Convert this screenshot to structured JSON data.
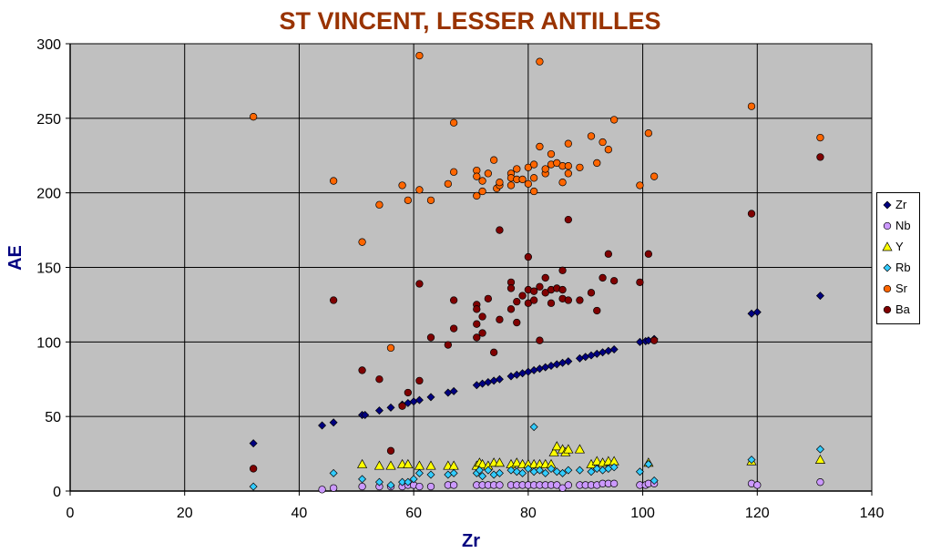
{
  "chart_data": {
    "type": "scatter",
    "title": "ST VINCENT, LESSER ANTILLES",
    "xlabel": "Zr",
    "ylabel": "AE",
    "xlim": [
      0,
      140
    ],
    "ylim": [
      0,
      300
    ],
    "xticks": [
      "0",
      "20",
      "40",
      "60",
      "80",
      "100",
      "120",
      "140"
    ],
    "yticks": [
      "0",
      "50",
      "100",
      "150",
      "200",
      "250",
      "300"
    ],
    "grid": true,
    "plot_background": "#c0c0c0",
    "legend_position": "right",
    "series": [
      {
        "name": "Zr",
        "marker": "diamond",
        "color": "#000080",
        "points": [
          [
            32,
            32
          ],
          [
            44,
            44
          ],
          [
            46,
            46
          ],
          [
            51,
            51
          ],
          [
            51.5,
            51
          ],
          [
            54,
            54
          ],
          [
            56,
            56
          ],
          [
            58,
            58
          ],
          [
            59,
            59
          ],
          [
            60,
            60
          ],
          [
            61,
            61
          ],
          [
            63,
            63
          ],
          [
            66,
            66
          ],
          [
            67,
            67
          ],
          [
            71,
            71
          ],
          [
            72,
            72
          ],
          [
            73,
            73
          ],
          [
            74,
            74
          ],
          [
            75,
            75
          ],
          [
            77,
            77
          ],
          [
            78,
            78
          ],
          [
            79,
            79
          ],
          [
            80,
            80
          ],
          [
            81,
            81
          ],
          [
            82,
            82
          ],
          [
            83,
            83
          ],
          [
            84,
            84
          ],
          [
            85,
            85
          ],
          [
            86,
            86
          ],
          [
            87,
            87
          ],
          [
            89,
            89
          ],
          [
            90,
            90
          ],
          [
            91,
            91
          ],
          [
            92,
            92
          ],
          [
            93,
            93
          ],
          [
            94,
            94
          ],
          [
            95,
            95
          ],
          [
            99.5,
            100
          ],
          [
            100.5,
            100.5
          ],
          [
            101,
            101
          ],
          [
            102,
            102
          ],
          [
            119,
            119
          ],
          [
            120,
            120
          ],
          [
            131,
            131
          ]
        ]
      },
      {
        "name": "Nb",
        "marker": "circle",
        "color": "#cc99ff",
        "points": [
          [
            44,
            1
          ],
          [
            46,
            2
          ],
          [
            51,
            3
          ],
          [
            54,
            3
          ],
          [
            56,
            3
          ],
          [
            58,
            3
          ],
          [
            59,
            4
          ],
          [
            60,
            4
          ],
          [
            61,
            3
          ],
          [
            63,
            3
          ],
          [
            66,
            4
          ],
          [
            67,
            4
          ],
          [
            71,
            4
          ],
          [
            72,
            4
          ],
          [
            73,
            4
          ],
          [
            74,
            4
          ],
          [
            75,
            4
          ],
          [
            77,
            4
          ],
          [
            78,
            4
          ],
          [
            79,
            4
          ],
          [
            80,
            4
          ],
          [
            81,
            4
          ],
          [
            82,
            4
          ],
          [
            83,
            4
          ],
          [
            84,
            4
          ],
          [
            85,
            4
          ],
          [
            86,
            2
          ],
          [
            87,
            4
          ],
          [
            89,
            4
          ],
          [
            90,
            4
          ],
          [
            91,
            4
          ],
          [
            92,
            4
          ],
          [
            93,
            5
          ],
          [
            94,
            5
          ],
          [
            95,
            5
          ],
          [
            99.5,
            4
          ],
          [
            100.5,
            4
          ],
          [
            101,
            5
          ],
          [
            102,
            5
          ],
          [
            119,
            5
          ],
          [
            120,
            4
          ],
          [
            131,
            6
          ]
        ]
      },
      {
        "name": "Y",
        "marker": "triangle",
        "color": "#ffff00",
        "points": [
          [
            51,
            18
          ],
          [
            54,
            17
          ],
          [
            56,
            17
          ],
          [
            58,
            18
          ],
          [
            59,
            18
          ],
          [
            61,
            17
          ],
          [
            63,
            17
          ],
          [
            66,
            17
          ],
          [
            67,
            17
          ],
          [
            71,
            17
          ],
          [
            71.5,
            19
          ],
          [
            72,
            18
          ],
          [
            73,
            17
          ],
          [
            74,
            19
          ],
          [
            75,
            19
          ],
          [
            77,
            18
          ],
          [
            78,
            19
          ],
          [
            79,
            18
          ],
          [
            80,
            18
          ],
          [
            81,
            18
          ],
          [
            82,
            18
          ],
          [
            83,
            18
          ],
          [
            84,
            18
          ],
          [
            84.5,
            26
          ],
          [
            85,
            30
          ],
          [
            86,
            28
          ],
          [
            86.5,
            26
          ],
          [
            87,
            28
          ],
          [
            89,
            28
          ],
          [
            91,
            18
          ],
          [
            92,
            20
          ],
          [
            93,
            19
          ],
          [
            94,
            20
          ],
          [
            95,
            20
          ],
          [
            101,
            19
          ],
          [
            119,
            20
          ],
          [
            131,
            21
          ]
        ]
      },
      {
        "name": "Rb",
        "marker": "diamond",
        "color": "#33ccff",
        "points": [
          [
            32,
            3
          ],
          [
            46,
            12
          ],
          [
            51,
            8
          ],
          [
            54,
            6
          ],
          [
            56,
            4
          ],
          [
            58,
            6
          ],
          [
            59,
            6
          ],
          [
            60,
            8
          ],
          [
            61,
            12
          ],
          [
            63,
            11
          ],
          [
            66,
            11
          ],
          [
            67,
            12
          ],
          [
            71,
            12
          ],
          [
            71.5,
            14
          ],
          [
            72,
            10
          ],
          [
            73,
            14
          ],
          [
            74,
            11
          ],
          [
            75,
            12
          ],
          [
            77,
            14
          ],
          [
            78,
            13
          ],
          [
            79,
            12
          ],
          [
            80,
            15
          ],
          [
            81,
            13
          ],
          [
            81,
            43
          ],
          [
            82,
            14
          ],
          [
            83,
            12
          ],
          [
            84,
            15
          ],
          [
            85,
            13
          ],
          [
            86,
            12
          ],
          [
            87,
            14
          ],
          [
            89,
            14
          ],
          [
            91,
            13
          ],
          [
            92,
            15
          ],
          [
            93,
            14
          ],
          [
            94,
            15
          ],
          [
            95,
            16
          ],
          [
            99.5,
            13
          ],
          [
            101,
            18
          ],
          [
            102,
            7
          ],
          [
            119,
            21
          ],
          [
            131,
            28
          ]
        ]
      },
      {
        "name": "Sr",
        "marker": "circle",
        "color": "#ff6600",
        "points": [
          [
            32,
            251
          ],
          [
            46,
            208
          ],
          [
            51,
            167
          ],
          [
            54,
            192
          ],
          [
            56,
            96
          ],
          [
            58,
            205
          ],
          [
            59,
            195
          ],
          [
            61,
            292
          ],
          [
            61,
            202
          ],
          [
            63,
            195
          ],
          [
            66,
            206
          ],
          [
            67,
            247
          ],
          [
            67,
            214
          ],
          [
            71,
            215
          ],
          [
            71,
            211
          ],
          [
            71,
            198
          ],
          [
            72,
            201
          ],
          [
            72,
            208
          ],
          [
            73,
            213
          ],
          [
            74,
            222
          ],
          [
            74.5,
            203
          ],
          [
            75,
            205
          ],
          [
            75,
            207
          ],
          [
            77,
            213
          ],
          [
            77,
            210
          ],
          [
            77,
            205
          ],
          [
            78,
            216
          ],
          [
            78,
            209
          ],
          [
            79,
            209
          ],
          [
            80,
            217
          ],
          [
            80,
            206
          ],
          [
            81,
            219
          ],
          [
            81,
            201
          ],
          [
            81,
            210
          ],
          [
            82,
            288
          ],
          [
            82,
            231
          ],
          [
            83,
            213
          ],
          [
            83,
            216
          ],
          [
            84,
            226
          ],
          [
            84,
            219
          ],
          [
            85,
            220
          ],
          [
            86,
            207
          ],
          [
            86,
            218
          ],
          [
            87,
            233
          ],
          [
            87,
            213
          ],
          [
            87,
            218
          ],
          [
            89,
            217
          ],
          [
            91,
            238
          ],
          [
            92,
            220
          ],
          [
            93,
            234
          ],
          [
            94,
            229
          ],
          [
            95,
            249
          ],
          [
            99.5,
            205
          ],
          [
            101,
            240
          ],
          [
            102,
            211
          ],
          [
            119,
            258
          ],
          [
            131,
            237
          ]
        ]
      },
      {
        "name": "Ba",
        "marker": "circle",
        "color": "#800000",
        "points": [
          [
            32,
            15
          ],
          [
            46,
            128
          ],
          [
            51,
            81
          ],
          [
            54,
            75
          ],
          [
            56,
            27
          ],
          [
            58,
            57
          ],
          [
            59,
            66
          ],
          [
            61,
            139
          ],
          [
            61,
            74
          ],
          [
            63,
            103
          ],
          [
            66,
            98
          ],
          [
            67,
            128
          ],
          [
            67,
            109
          ],
          [
            71,
            125
          ],
          [
            71,
            122
          ],
          [
            71,
            112
          ],
          [
            71,
            103
          ],
          [
            72,
            117
          ],
          [
            72,
            106
          ],
          [
            73,
            129
          ],
          [
            74,
            93
          ],
          [
            75,
            175
          ],
          [
            75,
            115
          ],
          [
            77,
            140
          ],
          [
            77,
            136
          ],
          [
            77,
            122
          ],
          [
            78,
            113
          ],
          [
            78,
            127
          ],
          [
            79,
            131
          ],
          [
            80,
            157
          ],
          [
            80,
            135
          ],
          [
            80,
            126
          ],
          [
            81,
            134
          ],
          [
            81,
            128
          ],
          [
            82,
            137
          ],
          [
            82,
            101
          ],
          [
            83,
            143
          ],
          [
            83,
            133
          ],
          [
            84,
            135
          ],
          [
            84,
            126
          ],
          [
            85,
            136
          ],
          [
            86,
            148
          ],
          [
            86,
            135
          ],
          [
            86,
            129
          ],
          [
            87,
            182
          ],
          [
            87,
            128
          ],
          [
            89,
            128
          ],
          [
            91,
            133
          ],
          [
            92,
            121
          ],
          [
            93,
            143
          ],
          [
            94,
            159
          ],
          [
            95,
            141
          ],
          [
            99.5,
            140
          ],
          [
            101,
            159
          ],
          [
            102,
            101
          ],
          [
            119,
            186
          ],
          [
            131,
            224
          ]
        ]
      }
    ]
  }
}
